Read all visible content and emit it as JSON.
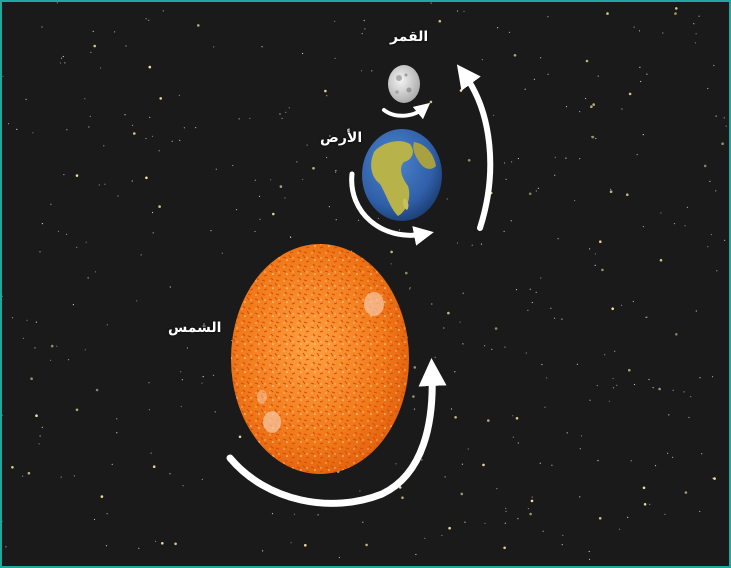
{
  "labels": {
    "moon": "القمر",
    "earth": "الأرض",
    "sun": "الشمس"
  },
  "colors": {
    "frame": "#1fa7a0",
    "background": "#1a1a1a",
    "sun": "#f07818",
    "sun_spots": "#d84a10",
    "earth_ocean": "#2f5fa8",
    "earth_land": "#b8b24a",
    "moon": "#dcdcdc",
    "arrows": "#ffffff",
    "stars": "#f2e7a0"
  },
  "icons": {
    "sun": "sun-icon",
    "earth": "earth-icon",
    "moon": "moon-icon"
  }
}
